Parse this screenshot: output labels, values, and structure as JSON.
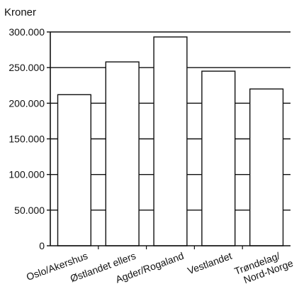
{
  "chart_data": {
    "type": "bar",
    "ylabel": "Kroner",
    "categories": [
      "Oslo/Akershus",
      "Østlandet ellers",
      "Agder/Rogaland",
      "Vestlandet",
      "Trøndelag/ Nord-Norge"
    ],
    "values": [
      212000,
      258000,
      293000,
      245000,
      220000
    ],
    "ylim": [
      0,
      300000
    ],
    "yticks": [
      0,
      50000,
      100000,
      150000,
      200000,
      250000,
      300000
    ],
    "ytick_labels": [
      "0",
      "50.000",
      "100.000",
      "150.000",
      "200.000",
      "250.000",
      "300.000"
    ],
    "grid": true,
    "legend": "none",
    "colors": {
      "bar_fill": "#ffffff",
      "bar_stroke": "#111111",
      "grid": "#111111"
    }
  }
}
